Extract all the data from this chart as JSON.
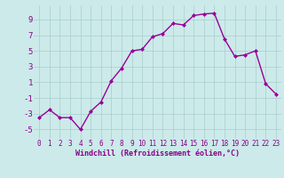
{
  "x": [
    0,
    1,
    2,
    3,
    4,
    5,
    6,
    7,
    8,
    9,
    10,
    11,
    12,
    13,
    14,
    15,
    16,
    17,
    18,
    19,
    20,
    21,
    22,
    23
  ],
  "y": [
    -3.5,
    -2.5,
    -3.5,
    -3.5,
    -5.0,
    -2.7,
    -1.5,
    1.2,
    2.8,
    5.0,
    5.2,
    6.8,
    7.2,
    8.5,
    8.3,
    9.5,
    9.7,
    9.8,
    6.5,
    4.3,
    4.5,
    5.0,
    0.8,
    -0.5
  ],
  "line_color": "#990099",
  "marker": "D",
  "marker_size": 2,
  "linewidth": 1.0,
  "background_color": "#cceaea",
  "grid_color": "#aacccc",
  "xlabel": "Windchill (Refroidissement éolien,°C)",
  "xlabel_color": "#880088",
  "yticks": [
    -5,
    -3,
    -1,
    1,
    3,
    5,
    7,
    9
  ],
  "xticks": [
    0,
    1,
    2,
    3,
    4,
    5,
    6,
    7,
    8,
    9,
    10,
    11,
    12,
    13,
    14,
    15,
    16,
    17,
    18,
    19,
    20,
    21,
    22,
    23
  ],
  "xlim": [
    -0.5,
    23.5
  ],
  "ylim": [
    -6.2,
    10.8
  ],
  "tick_color": "#880088",
  "tick_fontsize": 5.5,
  "ylabel_fontsize": 6.5
}
